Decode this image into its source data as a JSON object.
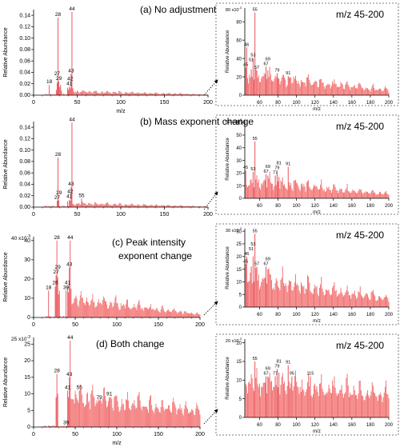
{
  "colors": {
    "bar": "#f26b6b",
    "bar_dark": "#e8434b",
    "axis": "#000000",
    "box": "#555555"
  },
  "chart_data": [
    {
      "type": "bar",
      "panel": "main-a",
      "title": "(a) No adjustment",
      "xlabel": "m/z",
      "ylabel": "Relative Abundance",
      "xlim": [
        0,
        200
      ],
      "ylim": [
        0,
        0.15
      ],
      "xticks": [
        0,
        50,
        100,
        150,
        200
      ],
      "xtick_labels": [
        "0",
        "50",
        "100",
        "150",
        "200"
      ],
      "yticks": [
        0,
        0.02,
        0.04,
        0.06,
        0.08,
        0.1,
        0.12,
        0.14
      ],
      "ytick_labels": [
        "0.00",
        "0.02",
        "0.04",
        "0.06",
        "0.08",
        "0.10",
        "0.12",
        "0.14"
      ],
      "peaks": [
        [
          18,
          0.018
        ],
        [
          26,
          0.009
        ],
        [
          27,
          0.022
        ],
        [
          28,
          0.136
        ],
        [
          29,
          0.024
        ],
        [
          30,
          0.014
        ],
        [
          31,
          0.018
        ],
        [
          32,
          0.008
        ],
        [
          39,
          0.013
        ],
        [
          40,
          0.009
        ],
        [
          41,
          0.015
        ],
        [
          42,
          0.012
        ],
        [
          43,
          0.037
        ],
        [
          44,
          0.146
        ],
        [
          45,
          0.012
        ],
        [
          55,
          0.006
        ]
      ],
      "tail": {
        "xmin": 45,
        "xmax": 200,
        "start": 0.006,
        "end": 0.001,
        "noise": 0.5
      },
      "peak_labels": [
        "18",
        "28",
        "29",
        "27",
        "41",
        "42",
        "43",
        "44"
      ]
    },
    {
      "type": "bar",
      "panel": "inset-a",
      "title": "m/z 45-200",
      "xlabel": "m/z",
      "ylabel": "Relative Abundance",
      "xlim": [
        44,
        200
      ],
      "ylim": [
        0,
        0.095
      ],
      "y_multiplier": "x10",
      "y_multiplier_exp": "-3",
      "xticks": [
        60,
        80,
        100,
        120,
        140,
        160,
        180,
        200
      ],
      "xtick_labels": [
        "60",
        "80",
        "100",
        "120",
        "140",
        "160",
        "180",
        "200"
      ],
      "yticks": [
        0,
        0.02,
        0.04,
        0.06,
        0.08
      ],
      "ytick_labels": [
        "0",
        "20",
        "40",
        "60",
        "80"
      ],
      "peaks": [
        [
          45,
          0.03
        ],
        [
          46,
          0.052
        ],
        [
          51,
          0.028
        ],
        [
          53,
          0.04
        ],
        [
          55,
          0.09
        ],
        [
          57,
          0.027
        ],
        [
          67,
          0.031
        ],
        [
          69,
          0.027
        ],
        [
          79,
          0.024
        ],
        [
          81,
          0.018
        ],
        [
          91,
          0.021
        ]
      ],
      "tail": {
        "xmin": 45,
        "xmax": 200,
        "start": 0.02,
        "end": 0.005,
        "noise": 0.45
      },
      "peak_labels": [
        "45",
        "46",
        "51",
        "53",
        "55",
        "57",
        "67",
        "69",
        "79",
        "91"
      ]
    },
    {
      "type": "bar",
      "panel": "main-b",
      "title": "(b) Mass exponent change",
      "xlabel": "",
      "ylabel": "Relative Abundance",
      "xlim": [
        0,
        200
      ],
      "ylim": [
        0,
        0.15
      ],
      "xticks": [
        0,
        50,
        100,
        150,
        200
      ],
      "xtick_labels": [
        "0",
        "50",
        "100",
        "150",
        "200"
      ],
      "yticks": [
        0,
        0.02,
        0.04,
        0.06,
        0.08,
        0.1,
        0.12,
        0.14
      ],
      "ytick_labels": [
        "0.00",
        "0.02",
        "0.04",
        "0.06",
        "0.08",
        "0.10",
        "0.12",
        "0.14"
      ],
      "peaks": [
        [
          27,
          0.011
        ],
        [
          28,
          0.087
        ],
        [
          29,
          0.012
        ],
        [
          39,
          0.01
        ],
        [
          41,
          0.013
        ],
        [
          42,
          0.011
        ],
        [
          43,
          0.035
        ],
        [
          44,
          0.148
        ],
        [
          55,
          0.015
        ]
      ],
      "tail": {
        "xmin": 45,
        "xmax": 200,
        "start": 0.006,
        "end": 0.001,
        "noise": 0.5
      },
      "peak_labels": [
        "27",
        "28",
        "29",
        "41",
        "42",
        "43",
        "44",
        "55"
      ]
    },
    {
      "type": "bar",
      "panel": "inset-b",
      "title": "m/z 45-200",
      "xlabel": "m/z",
      "ylabel": "Relative Abundance",
      "xlim": [
        44,
        200
      ],
      "ylim": [
        0,
        0.062
      ],
      "y_multiplier": "x10",
      "y_multiplier_exp": "-3",
      "xticks": [
        60,
        80,
        100,
        120,
        140,
        160,
        180,
        200
      ],
      "xtick_labels": [
        "60",
        "80",
        "100",
        "120",
        "140",
        "160",
        "180",
        "200"
      ],
      "yticks": [
        0,
        0.01,
        0.02,
        0.03,
        0.04,
        0.05,
        0.06
      ],
      "ytick_labels": [
        "0",
        "10",
        "20",
        "30",
        "40",
        "50",
        "60"
      ],
      "peaks": [
        [
          45,
          0.022
        ],
        [
          53,
          0.021
        ],
        [
          55,
          0.045
        ],
        [
          67,
          0.019
        ],
        [
          69,
          0.018
        ],
        [
          77,
          0.018
        ],
        [
          79,
          0.021
        ],
        [
          81,
          0.017
        ],
        [
          91,
          0.025
        ]
      ],
      "tail": {
        "xmin": 45,
        "xmax": 200,
        "start": 0.013,
        "end": 0.003,
        "noise": 0.45
      },
      "peak_labels": [
        "45",
        "53",
        "55",
        "67",
        "69",
        "77",
        "79",
        "81",
        "91"
      ]
    },
    {
      "type": "bar",
      "panel": "main-c",
      "title": "(c) Peak intensity",
      "title2": "exponent change",
      "xlabel": "",
      "ylabel": "Relative Abundance",
      "xlim": [
        0,
        200
      ],
      "ylim": [
        0,
        0.042
      ],
      "y_multiplier": "x10",
      "y_multiplier_exp": "-3",
      "xticks": [
        0,
        50,
        100,
        150,
        200
      ],
      "xtick_labels": [
        "0",
        "50",
        "100",
        "150",
        "200"
      ],
      "yticks": [
        0,
        0.01,
        0.02,
        0.03,
        0.04
      ],
      "ytick_labels": [
        "0",
        "10",
        "20",
        "30",
        "40"
      ],
      "peaks": [
        [
          18,
          0.014
        ],
        [
          26,
          0.016
        ],
        [
          27,
          0.022
        ],
        [
          28,
          0.04
        ],
        [
          29,
          0.021
        ],
        [
          30,
          0.012
        ],
        [
          31,
          0.014
        ],
        [
          39,
          0.014
        ],
        [
          41,
          0.016
        ],
        [
          42,
          0.013
        ],
        [
          43,
          0.026
        ],
        [
          44,
          0.04
        ],
        [
          45,
          0.015
        ]
      ],
      "tail": {
        "xmin": 45,
        "xmax": 200,
        "start": 0.009,
        "end": 0.0015,
        "noise": 0.4
      },
      "peak_labels": [
        "18",
        "26",
        "27",
        "29",
        "28",
        "39",
        "41",
        "43",
        "44"
      ]
    },
    {
      "type": "bar",
      "panel": "inset-c",
      "title": "m/z 45-200",
      "xlabel": "m/z",
      "ylabel": "Relative Abundance",
      "xlim": [
        44,
        200
      ],
      "ylim": [
        0,
        0.031
      ],
      "y_multiplier": "x10",
      "y_multiplier_exp": "-3",
      "xticks": [
        60,
        80,
        100,
        120,
        140,
        160,
        180,
        200
      ],
      "xtick_labels": [
        "60",
        "80",
        "100",
        "120",
        "140",
        "160",
        "180",
        "200"
      ],
      "yticks": [
        0,
        0.005,
        0.01,
        0.015,
        0.02,
        0.025,
        0.03
      ],
      "ytick_labels": [
        "0",
        "5",
        "10",
        "15",
        "20",
        "25",
        "30"
      ],
      "peaks": [
        [
          45,
          0.017
        ],
        [
          46,
          0.02
        ],
        [
          51,
          0.016
        ],
        [
          53,
          0.02
        ],
        [
          55,
          0.029
        ],
        [
          57,
          0.016
        ],
        [
          67,
          0.016
        ],
        [
          69,
          0.015
        ]
      ],
      "tail": {
        "xmin": 45,
        "xmax": 200,
        "start": 0.011,
        "end": 0.003,
        "noise": 0.4
      },
      "peak_labels": [
        "45",
        "46",
        "51",
        "53",
        "55",
        "57",
        "67",
        "69"
      ]
    },
    {
      "type": "bar",
      "panel": "main-d",
      "title": "(d) Both change",
      "xlabel": "m/z",
      "ylabel": "Relative Abundance",
      "xlim": [
        0,
        200
      ],
      "ylim": [
        0,
        0.027
      ],
      "y_multiplier": "x10",
      "y_multiplier_exp": "-3",
      "xticks": [
        0,
        50,
        100,
        150,
        200
      ],
      "xtick_labels": [
        "0",
        "50",
        "100",
        "150",
        "200"
      ],
      "yticks": [
        0,
        0.005,
        0.01,
        0.015,
        0.02,
        0.025
      ],
      "ytick_labels": [
        "0",
        "5",
        "10",
        "15",
        "20",
        "25"
      ],
      "peaks": [
        [
          27,
          0.009
        ],
        [
          28,
          0.016
        ],
        [
          29,
          0.01
        ],
        [
          41,
          0.011
        ],
        [
          42,
          0.009
        ],
        [
          43,
          0.015
        ],
        [
          44,
          0.026
        ],
        [
          55,
          0.011
        ],
        [
          79,
          0.008
        ],
        [
          91,
          0.009
        ]
      ],
      "tail": {
        "xmin": 45,
        "xmax": 200,
        "start": 0.0085,
        "end": 0.0045,
        "noise": 0.35
      },
      "peak_labels": [
        "28",
        "39",
        "41",
        "43",
        "44",
        "55",
        "79",
        "91"
      ]
    },
    {
      "type": "bar",
      "panel": "inset-d",
      "title": "m/z 45-200",
      "xlabel": "m/z",
      "ylabel": "Relative Abundance",
      "xlim": [
        44,
        200
      ],
      "ylim": [
        0,
        0.021
      ],
      "y_multiplier": "x10",
      "y_multiplier_exp": "-3",
      "xticks": [
        60,
        80,
        100,
        120,
        140,
        160,
        180,
        200
      ],
      "xtick_labels": [
        "60",
        "80",
        "100",
        "120",
        "140",
        "160",
        "180",
        "200"
      ],
      "yticks": [
        0,
        0.005,
        0.01,
        0.015,
        0.02
      ],
      "ytick_labels": [
        "0",
        "5",
        "10",
        "15",
        "20"
      ],
      "peaks": [
        [
          55,
          0.015
        ],
        [
          67,
          0.011
        ],
        [
          69,
          0.011
        ],
        [
          77,
          0.011
        ],
        [
          79,
          0.013
        ],
        [
          81,
          0.012
        ],
        [
          91,
          0.014
        ],
        [
          95,
          0.011
        ],
        [
          115,
          0.011
        ]
      ],
      "tail": {
        "xmin": 45,
        "xmax": 200,
        "start": 0.009,
        "end": 0.0055,
        "noise": 0.35
      },
      "peak_labels": [
        "55",
        "67",
        "69",
        "77",
        "79",
        "81",
        "91",
        "95",
        "115"
      ]
    }
  ]
}
